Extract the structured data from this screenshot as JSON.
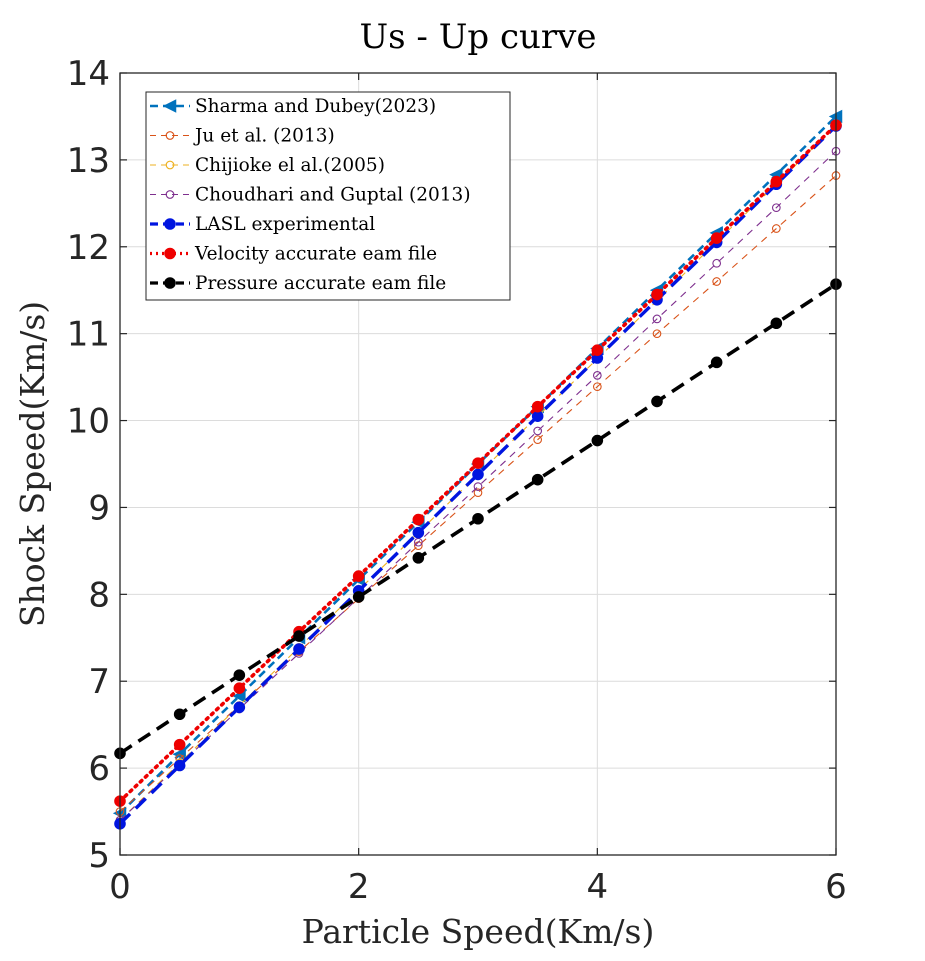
{
  "chart_data": {
    "type": "line",
    "title": "Us - Up curve",
    "xlabel": "Particle Speed(Km/s)",
    "ylabel": "Shock Speed(Km/s)",
    "xlim": [
      0,
      6
    ],
    "ylim": [
      5,
      14
    ],
    "xticks": [
      0,
      2,
      4,
      6
    ],
    "yticks": [
      5,
      6,
      7,
      8,
      9,
      10,
      11,
      12,
      13,
      14
    ],
    "grid": true,
    "legend_position": "top-left",
    "x": [
      0,
      0.5,
      1,
      1.5,
      2,
      2.5,
      3,
      3.5,
      4,
      4.5,
      5,
      5.5,
      6
    ],
    "series": [
      {
        "name": "Sharma and Dubey(2023)",
        "color": "#0072BD",
        "line": "dashed",
        "width": 2.6,
        "marker": "triangle-left",
        "filled": true,
        "values": [
          5.48,
          6.16,
          6.83,
          7.5,
          8.17,
          8.83,
          9.5,
          10.16,
          10.83,
          11.5,
          12.16,
          12.83,
          13.5
        ]
      },
      {
        "name": "Ju et al. (2013)",
        "color": "#D95319",
        "line": "dashed",
        "width": 1.1,
        "marker": "circle",
        "filled": false,
        "values": [
          5.5,
          6.11,
          6.72,
          7.34,
          7.95,
          8.56,
          9.17,
          9.78,
          10.39,
          11.0,
          11.6,
          12.21,
          12.82
        ]
      },
      {
        "name": "Chijioke el al.(2005)",
        "color": "#EDB120",
        "line": "dashed",
        "width": 1.1,
        "marker": "circle",
        "filled": false,
        "values": [
          5.4,
          6.06,
          6.72,
          7.39,
          8.05,
          8.71,
          9.38,
          10.05,
          10.71,
          11.38,
          12.06,
          12.72,
          13.4
        ]
      },
      {
        "name": "Choudhari and Guptal (2013)",
        "color": "#7E2F8E",
        "line": "dashed",
        "width": 1.1,
        "marker": "circle",
        "filled": false,
        "values": [
          5.4,
          6.04,
          6.68,
          7.32,
          7.96,
          8.6,
          9.24,
          9.88,
          10.52,
          11.17,
          11.81,
          12.45,
          13.1
        ]
      },
      {
        "name": "LASL experimental",
        "color": "#0015E0",
        "line": "dashed",
        "width": 3.4,
        "marker": "circle",
        "filled": true,
        "values": [
          5.36,
          6.03,
          6.7,
          7.37,
          8.04,
          8.71,
          9.38,
          10.05,
          10.72,
          11.39,
          12.05,
          12.72,
          13.39
        ]
      },
      {
        "name": "Velocity accurate eam file",
        "color": "#EE0000",
        "line": "dotted",
        "width": 3.6,
        "marker": "circle",
        "filled": true,
        "values": [
          5.62,
          6.27,
          6.92,
          7.57,
          8.21,
          8.86,
          9.51,
          10.16,
          10.81,
          11.45,
          12.1,
          12.75,
          13.4
        ]
      },
      {
        "name": "Pressure accurate eam file",
        "color": "#000000",
        "line": "dashed",
        "width": 3.6,
        "marker": "circle",
        "filled": true,
        "values": [
          6.17,
          6.62,
          7.07,
          7.52,
          7.97,
          8.42,
          8.87,
          9.32,
          9.77,
          10.22,
          10.67,
          11.12,
          11.57
        ]
      }
    ]
  }
}
